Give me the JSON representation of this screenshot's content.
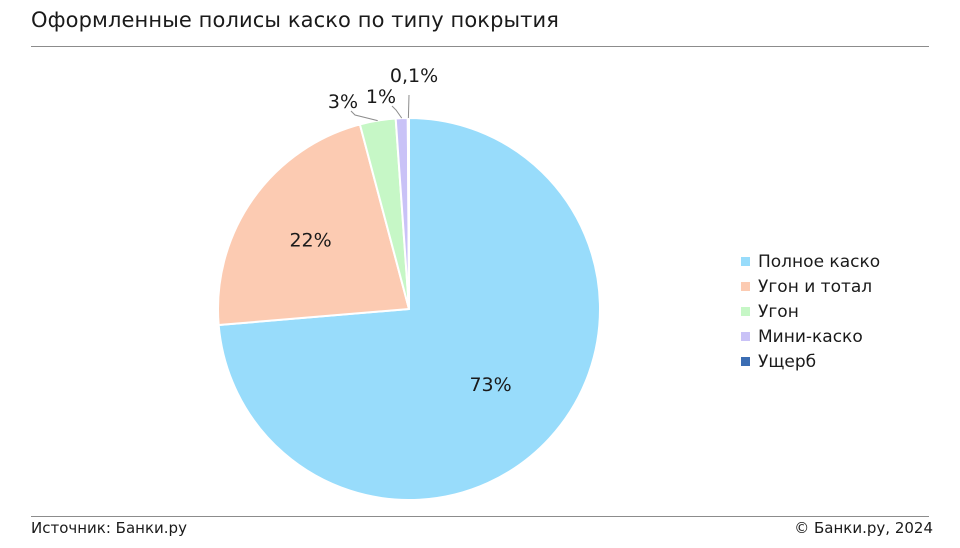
{
  "header": {
    "title": "Оформленные полисы каско по типу покрытия"
  },
  "footer": {
    "source": "Источник: Банки.ру",
    "copyright": "© Банки.ру, 2024"
  },
  "chart_data": {
    "type": "pie",
    "categories": [
      "Полное каско",
      "Угон и тотал",
      "Угон",
      "Мини-каско",
      "Ущерб"
    ],
    "values": [
      73,
      22,
      3,
      1,
      0.1
    ],
    "data_labels": [
      "73%",
      "22%",
      "3%",
      "1%",
      "0,1%"
    ],
    "colors": [
      "#98dcfb",
      "#fccbb2",
      "#c6f7c6",
      "#c9c2f7",
      "#3b6db3"
    ],
    "legend_position": "right",
    "start_angle": "12 o'clock",
    "direction": "clockwise"
  }
}
